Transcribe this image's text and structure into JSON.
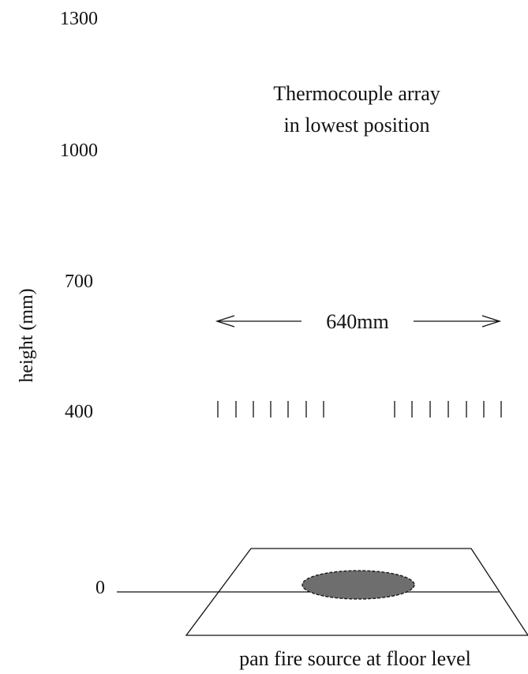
{
  "axis": {
    "label": "height (mm)",
    "ticks": [
      "1300",
      "1000",
      "700",
      "400",
      "0"
    ]
  },
  "annotation": {
    "line1": "Thermocouple array",
    "line2": "in lowest position"
  },
  "width_label": "640mm",
  "caption": "pan fire source at  floor level",
  "colors": {
    "ink": "#111111",
    "pan": "#6e6e6e"
  }
}
